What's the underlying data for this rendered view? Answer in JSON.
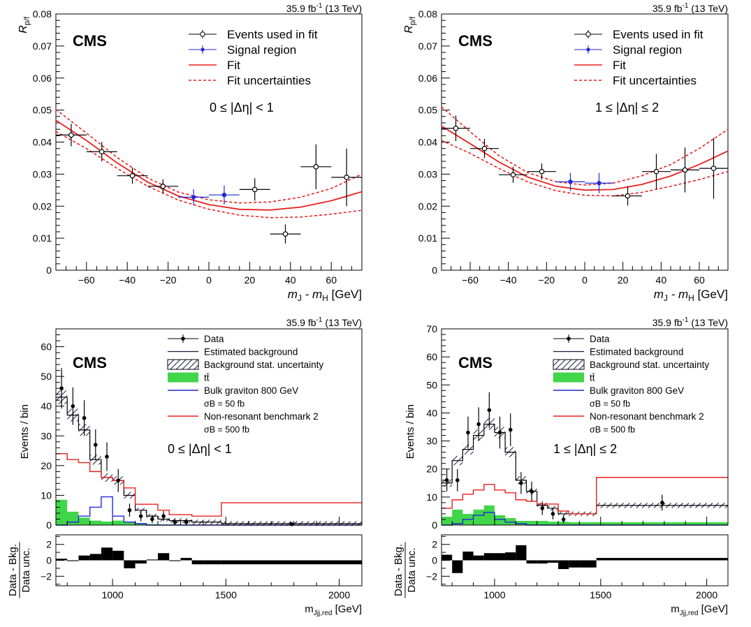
{
  "figure": {
    "lumi": "35.9 fb",
    "lumi_sup": "-1",
    "energy": " (13 TeV)",
    "experiment": "CMS",
    "colors": {
      "fit": "#e8201f",
      "signal_region": "#1f2ad6",
      "ttbar": "#41d64a",
      "graviton": "#1f2ad6",
      "nonres": "#e8201f"
    }
  },
  "chart_data": [
    {
      "type": "scatter",
      "panel": "top-left",
      "ylabel": "R",
      "ylabel_sub": "p/f",
      "xlabel": "m",
      "xlabel_sub1": "J",
      "xlabel_mid": " - m",
      "xlabel_sub2": "H",
      "xlabel_unit": " [GeV]",
      "xlim": [
        -75,
        75
      ],
      "ylim": [
        0,
        0.08
      ],
      "xticks": [
        -60,
        -40,
        -20,
        0,
        20,
        40,
        60
      ],
      "yticks": [
        0,
        0.01,
        0.02,
        0.03,
        0.04,
        0.05,
        0.06,
        0.07,
        0.08
      ],
      "ytick_labels": [
        "0",
        "0.01",
        "0.02",
        "0.03",
        "0.04",
        "0.05",
        "0.06",
        "0.07",
        "0.08"
      ],
      "legend": [
        "Events used in fit",
        "Signal region",
        "Fit",
        "Fit uncertainties"
      ],
      "region_label": "0 ≤ |Δη| < 1",
      "events_fit": [
        {
          "x": -67.5,
          "y": 0.0422,
          "ex": 7.5,
          "ey": 0.0035
        },
        {
          "x": -52.5,
          "y": 0.037,
          "ex": 7.5,
          "ey": 0.003
        },
        {
          "x": -37.5,
          "y": 0.0295,
          "ex": 7.5,
          "ey": 0.0025
        },
        {
          "x": -22.5,
          "y": 0.0262,
          "ex": 7.5,
          "ey": 0.0022
        },
        {
          "x": 22.5,
          "y": 0.0252,
          "ex": 7.5,
          "ey": 0.0035
        },
        {
          "x": 37.5,
          "y": 0.0113,
          "ex": 7.5,
          "ey": 0.003
        },
        {
          "x": 52.5,
          "y": 0.0323,
          "ex": 7.5,
          "ey": 0.007
        },
        {
          "x": 67.5,
          "y": 0.029,
          "ex": 7.5,
          "ey": 0.009
        }
      ],
      "signal_region": [
        {
          "x": -7.5,
          "y": 0.0228,
          "ex": 7.5,
          "ey": 0.0025
        },
        {
          "x": 7.5,
          "y": 0.0235,
          "ex": 7.5,
          "ey": 0.003
        }
      ],
      "fit": {
        "x": [
          -75,
          -60,
          -45,
          -30,
          -15,
          0,
          15,
          30,
          45,
          60,
          75
        ],
        "y": [
          0.0468,
          0.0405,
          0.0335,
          0.0275,
          0.0232,
          0.0205,
          0.019,
          0.0188,
          0.0197,
          0.0217,
          0.0245
        ]
      },
      "fit_up": {
        "x": [
          -75,
          -60,
          -45,
          -30,
          -15,
          0,
          15,
          30,
          45,
          60,
          75
        ],
        "y": [
          0.0502,
          0.0428,
          0.0352,
          0.0288,
          0.0244,
          0.022,
          0.021,
          0.0213,
          0.0228,
          0.0255,
          0.03
        ]
      },
      "fit_down": {
        "x": [
          -75,
          -60,
          -45,
          -30,
          -15,
          0,
          15,
          30,
          45,
          60,
          75
        ],
        "y": [
          0.0433,
          0.038,
          0.0318,
          0.0262,
          0.0219,
          0.019,
          0.0172,
          0.0164,
          0.0166,
          0.0175,
          0.0187
        ]
      }
    },
    {
      "type": "scatter",
      "panel": "top-right",
      "ylabel": "R",
      "ylabel_sub": "p/f",
      "xlabel": "m",
      "xlabel_sub1": "J",
      "xlabel_mid": " - m",
      "xlabel_sub2": "H",
      "xlabel_unit": " [GeV]",
      "xlim": [
        -75,
        75
      ],
      "ylim": [
        0,
        0.08
      ],
      "xticks": [
        -60,
        -40,
        -20,
        0,
        20,
        40,
        60
      ],
      "yticks": [
        0,
        0.01,
        0.02,
        0.03,
        0.04,
        0.05,
        0.06,
        0.07,
        0.08
      ],
      "ytick_labels": [
        "0",
        "0.01",
        "0.02",
        "0.03",
        "0.04",
        "0.05",
        "0.06",
        "0.07",
        "0.08"
      ],
      "legend": [
        "Events used in fit",
        "Signal region",
        "Fit",
        "Fit uncertainties"
      ],
      "region_label": "1 ≤ |Δη| ≤ 2",
      "events_fit": [
        {
          "x": -67.5,
          "y": 0.0443,
          "ex": 7.5,
          "ey": 0.004
        },
        {
          "x": -52.5,
          "y": 0.038,
          "ex": 7.5,
          "ey": 0.003
        },
        {
          "x": -37.5,
          "y": 0.0298,
          "ex": 7.5,
          "ey": 0.0025
        },
        {
          "x": -22.5,
          "y": 0.0308,
          "ex": 7.5,
          "ey": 0.0025
        },
        {
          "x": 22.5,
          "y": 0.0232,
          "ex": 7.5,
          "ey": 0.003
        },
        {
          "x": 37.5,
          "y": 0.0308,
          "ex": 7.5,
          "ey": 0.0055
        },
        {
          "x": 52.5,
          "y": 0.0313,
          "ex": 7.5,
          "ey": 0.007
        },
        {
          "x": 67.5,
          "y": 0.0318,
          "ex": 7.5,
          "ey": 0.0095
        }
      ],
      "signal_region": [
        {
          "x": -7.5,
          "y": 0.0276,
          "ex": 7.5,
          "ey": 0.0028
        },
        {
          "x": 7.5,
          "y": 0.0272,
          "ex": 7.5,
          "ey": 0.0032
        }
      ],
      "fit": {
        "x": [
          -75,
          -60,
          -45,
          -30,
          -15,
          0,
          15,
          30,
          45,
          60,
          75
        ],
        "y": [
          0.045,
          0.0395,
          0.0338,
          0.0291,
          0.0262,
          0.025,
          0.0252,
          0.0268,
          0.0294,
          0.033,
          0.0372
        ]
      },
      "fit_up": {
        "x": [
          -75,
          -60,
          -45,
          -30,
          -15,
          0,
          15,
          30,
          45,
          60,
          75
        ],
        "y": [
          0.051,
          0.0432,
          0.0358,
          0.0305,
          0.0276,
          0.0266,
          0.0272,
          0.0295,
          0.033,
          0.038,
          0.044
        ]
      },
      "fit_down": {
        "x": [
          -75,
          -60,
          -45,
          -30,
          -15,
          0,
          15,
          30,
          45,
          60,
          75
        ],
        "y": [
          0.0405,
          0.0365,
          0.0318,
          0.0276,
          0.0248,
          0.0234,
          0.0232,
          0.0243,
          0.0262,
          0.0283,
          0.0308
        ]
      }
    },
    {
      "type": "bar",
      "panel": "bottom-left",
      "ylabel": "Events / bin",
      "xlabel": "m",
      "xlabel_sub": "Jjj,red",
      "xlabel_unit": " [GeV]",
      "xlim": [
        750,
        2100
      ],
      "ylim": [
        0,
        66
      ],
      "yticks": [
        0,
        10,
        20,
        30,
        40,
        50,
        60
      ],
      "xticks": [
        1000,
        1500,
        2000
      ],
      "ratio_ylabel_num": "Data - Bkg.",
      "ratio_ylabel_den": "Data unc.",
      "ratio_ylim": [
        -3.2,
        3.2
      ],
      "ratio_yticks": [
        -2,
        0,
        2
      ],
      "legend": [
        "Data",
        "Estimated background",
        "Background stat. uncertainty",
        "tt̄",
        "Bulk graviton 800 GeV",
        "σB = 50 fb",
        "Non-resonant benchmark 2",
        "σB = 500 fb"
      ],
      "region_label": "0 ≤ |Δη| < 1",
      "bin_edges": [
        750,
        800,
        850,
        900,
        950,
        1000,
        1050,
        1100,
        1150,
        1200,
        1250,
        1300,
        1350,
        1400,
        1480,
        2100
      ],
      "background": [
        43,
        37,
        32,
        22,
        16,
        15,
        10,
        5,
        3,
        2,
        1.5,
        1.5,
        1,
        1,
        0.5
      ],
      "ttbar": [
        8.5,
        4.5,
        2.5,
        1.5,
        1.2,
        1.5,
        0.8,
        0.5,
        0.3,
        0.2,
        0.2,
        0.1,
        0.1,
        0.1,
        0.05
      ],
      "graviton": [
        0,
        1,
        3,
        6,
        9.5,
        3,
        1,
        0.5,
        0,
        0,
        0,
        0,
        0,
        0,
        0
      ],
      "nonres": [
        24,
        22,
        21,
        18,
        16,
        15,
        12.5,
        7,
        7,
        5,
        3.5,
        3.5,
        3,
        3,
        7.5
      ],
      "data": [
        {
          "x": 775,
          "y": 46,
          "ey": 6.8
        },
        {
          "x": 825,
          "y": 40,
          "ey": 6.3
        },
        {
          "x": 875,
          "y": 36,
          "ey": 6
        },
        {
          "x": 925,
          "y": 27,
          "ey": 5.2
        },
        {
          "x": 975,
          "y": 23,
          "ey": 4.8
        },
        {
          "x": 1025,
          "y": 15,
          "ey": 3.9
        },
        {
          "x": 1075,
          "y": 5,
          "ey": 2.2
        },
        {
          "x": 1125,
          "y": 3,
          "ey": 1.7
        },
        {
          "x": 1175,
          "y": 2,
          "ey": 1.4
        },
        {
          "x": 1225,
          "y": 3,
          "ey": 1.7
        },
        {
          "x": 1275,
          "y": 1,
          "ey": 1
        },
        {
          "x": 1325,
          "y": 1,
          "ey": 1
        },
        {
          "x": 1790,
          "y": 0.3,
          "ey": 0.5
        }
      ],
      "ratio": [
        0.2,
        -0.1,
        0.6,
        0.8,
        1.6,
        1.2,
        -1.0,
        -0.4,
        0.1,
        0.9,
        -0.1,
        0.3,
        -0.5,
        -0.5,
        -0.5
      ]
    },
    {
      "type": "bar",
      "panel": "bottom-right",
      "ylabel": "Events / bin",
      "xlabel": "m",
      "xlabel_sub": "Jjj,red",
      "xlabel_unit": " [GeV]",
      "xlim": [
        750,
        2100
      ],
      "ylim": [
        0,
        70
      ],
      "yticks": [
        0,
        10,
        20,
        30,
        40,
        50,
        60,
        70
      ],
      "xticks": [
        1000,
        1500,
        2000
      ],
      "ratio_ylabel_num": "Data - Bkg.",
      "ratio_ylabel_den": "Data unc.",
      "ratio_ylim": [
        -3.2,
        3.2
      ],
      "ratio_yticks": [
        -2,
        0,
        2
      ],
      "legend": [
        "Data",
        "Estimated background",
        "Background stat. uncertainty",
        "tt̄",
        "Bulk graviton 800 GeV",
        "σB = 50 fb",
        "Non-resonant benchmark 2",
        "σB = 500 fb"
      ],
      "region_label": "1 ≤ |Δη| ≤ 2",
      "bin_edges": [
        750,
        800,
        850,
        900,
        950,
        1000,
        1050,
        1100,
        1150,
        1200,
        1250,
        1300,
        1350,
        1400,
        1480,
        2100
      ],
      "background": [
        15,
        23,
        27,
        32,
        36,
        33,
        26,
        16,
        12,
        7,
        6,
        4,
        4,
        4,
        7
      ],
      "ttbar": [
        3,
        5.5,
        4,
        5.5,
        7,
        3.5,
        2.5,
        1.5,
        1.5,
        1.5,
        1.2,
        1.2,
        1,
        1,
        1
      ],
      "graviton": [
        0,
        0.5,
        2,
        3.5,
        4.5,
        2,
        1,
        0.5,
        0,
        0,
        0,
        0,
        0,
        0,
        0
      ],
      "nonres": [
        6,
        9,
        11,
        12.5,
        14.5,
        12.5,
        11.5,
        9,
        8.5,
        7.5,
        7.5,
        5,
        4,
        4,
        17
      ],
      "data": [
        {
          "x": 775,
          "y": 16,
          "ey": 4
        },
        {
          "x": 825,
          "y": 16,
          "ey": 4
        },
        {
          "x": 875,
          "y": 33,
          "ey": 5.7
        },
        {
          "x": 925,
          "y": 36,
          "ey": 6
        },
        {
          "x": 975,
          "y": 41,
          "ey": 6.4
        },
        {
          "x": 1025,
          "y": 33,
          "ey": 5.7
        },
        {
          "x": 1075,
          "y": 34,
          "ey": 5.8
        },
        {
          "x": 1125,
          "y": 15,
          "ey": 3.9
        },
        {
          "x": 1175,
          "y": 12,
          "ey": 3.5
        },
        {
          "x": 1225,
          "y": 6,
          "ey": 2.4
        },
        {
          "x": 1275,
          "y": 4,
          "ey": 2
        },
        {
          "x": 1325,
          "y": 2,
          "ey": 1.4
        },
        {
          "x": 1790,
          "y": 8,
          "ey": 2.8
        }
      ],
      "ratio": [
        0.7,
        -1.6,
        1.1,
        0.6,
        0.9,
        0.9,
        1.0,
        1.9,
        -0.4,
        -0.4,
        -0.3,
        -1.1,
        -0.9,
        -0.9,
        0.3
      ]
    }
  ]
}
